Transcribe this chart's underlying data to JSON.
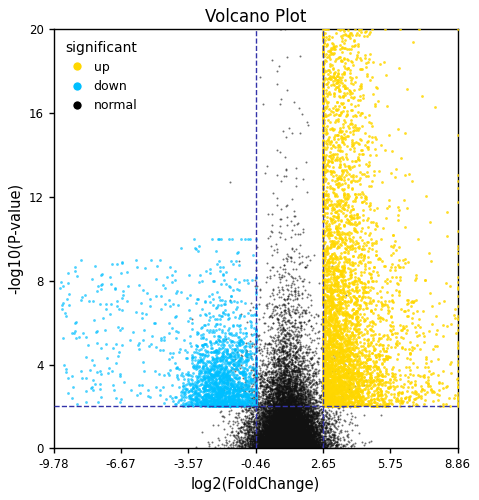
{
  "title": "Volcano Plot",
  "xlabel": "log2(FoldChange)",
  "ylabel": "-log10(P-value)",
  "xlim": [
    -9.78,
    8.86
  ],
  "ylim": [
    0,
    20
  ],
  "xticks": [
    -9.78,
    -6.67,
    -3.57,
    -0.46,
    2.65,
    5.75,
    8.86
  ],
  "yticks": [
    0,
    4,
    8,
    12,
    16,
    20
  ],
  "vline1": -0.46,
  "vline2": 2.65,
  "hline": 2.0,
  "color_up": "#FFD700",
  "color_down": "#00BFFF",
  "color_normal": "#111111",
  "legend_title": "significant",
  "legend_up": "up",
  "legend_down": "down",
  "legend_normal": "normal",
  "seed": 42
}
